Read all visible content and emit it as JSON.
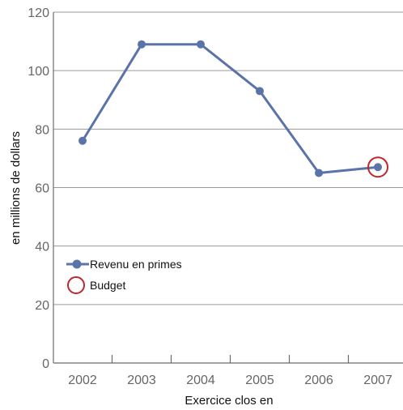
{
  "chart_data": {
    "type": "line",
    "categories": [
      "2002",
      "2003",
      "2004",
      "2005",
      "2006",
      "2007"
    ],
    "series": [
      {
        "name": "Revenu en primes",
        "values": [
          76,
          109,
          109,
          93,
          65,
          67
        ],
        "color": "#5b74a8"
      }
    ],
    "highlight": {
      "name": "Budget",
      "category": "2007",
      "value": 67,
      "color": "#c0272d"
    },
    "xlabel": "Exercice clos en",
    "ylabel": "en millions de dollars",
    "ylim": [
      0,
      120
    ],
    "yticks": [
      0,
      20,
      40,
      60,
      80,
      100,
      120
    ],
    "grid": true,
    "legend_position": "left"
  }
}
